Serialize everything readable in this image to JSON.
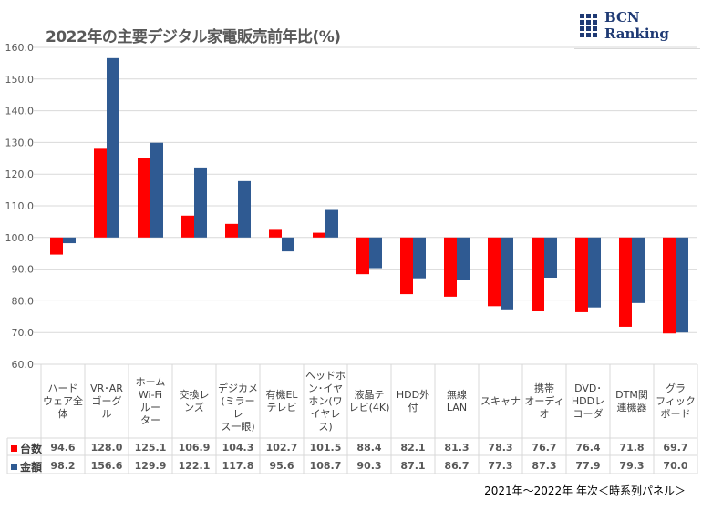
{
  "chart_data": {
    "type": "bar",
    "title": "2022年の主要デジタル家電販売前年比(%)",
    "xlabel": "",
    "ylabel": "",
    "ylim": [
      60,
      160
    ],
    "baseline": 100,
    "yticks": [
      "160.0",
      "150.0",
      "140.0",
      "130.0",
      "120.0",
      "110.0",
      "100.0",
      "90.0",
      "80.0",
      "70.0",
      "60.0"
    ],
    "ytick_values": [
      160,
      150,
      140,
      130,
      120,
      110,
      100,
      90,
      80,
      70,
      60
    ],
    "grid": true,
    "legend_placement": "table-left",
    "categories": [
      "ハード\nウェア全\n体",
      "VR･AR\nゴーグ\nル",
      "ホーム\nWi-Fi\nルー\nター",
      "交換レ\nンズ",
      "デジカメ\n(ミラーレ\nス一眼)",
      "有機EL\nテレビ",
      "ヘッドホ\nン･イヤ\nホン(ワ\nイヤレ\nス)",
      "液晶テ\nレビ(4K)",
      "HDD外\n付",
      "無線\nLAN",
      "スキャナ",
      "携帯\nオーディ\nオ",
      "DVD･\nHDDレ\nコーダ",
      "DTM関\n連機器",
      "グラ\nフィック\nボード"
    ],
    "series": [
      {
        "name": "台数",
        "color": "#ff0000",
        "values": [
          94.6,
          128.0,
          125.1,
          106.9,
          104.3,
          102.7,
          101.5,
          88.4,
          82.1,
          81.3,
          78.3,
          76.7,
          76.4,
          71.8,
          69.7
        ],
        "labels": [
          "94.6",
          "128.0",
          "125.1",
          "106.9",
          "104.3",
          "102.7",
          "101.5",
          "88.4",
          "82.1",
          "81.3",
          "78.3",
          "76.7",
          "76.4",
          "71.8",
          "69.7"
        ]
      },
      {
        "name": "金額",
        "color": "#2f5a92",
        "values": [
          98.2,
          156.6,
          129.9,
          122.1,
          117.8,
          95.6,
          108.7,
          90.3,
          87.1,
          86.7,
          77.3,
          87.3,
          77.9,
          79.3,
          70.0
        ],
        "labels": [
          "98.2",
          "156.6",
          "129.9",
          "122.1",
          "117.8",
          "95.6",
          "108.7",
          "90.3",
          "87.1",
          "86.7",
          "77.3",
          "87.3",
          "77.9",
          "79.3",
          "70.0"
        ]
      }
    ]
  },
  "logo": {
    "text": "BCN Ranking"
  },
  "footer": "2021年～2022年 年次＜時系列パネル＞"
}
